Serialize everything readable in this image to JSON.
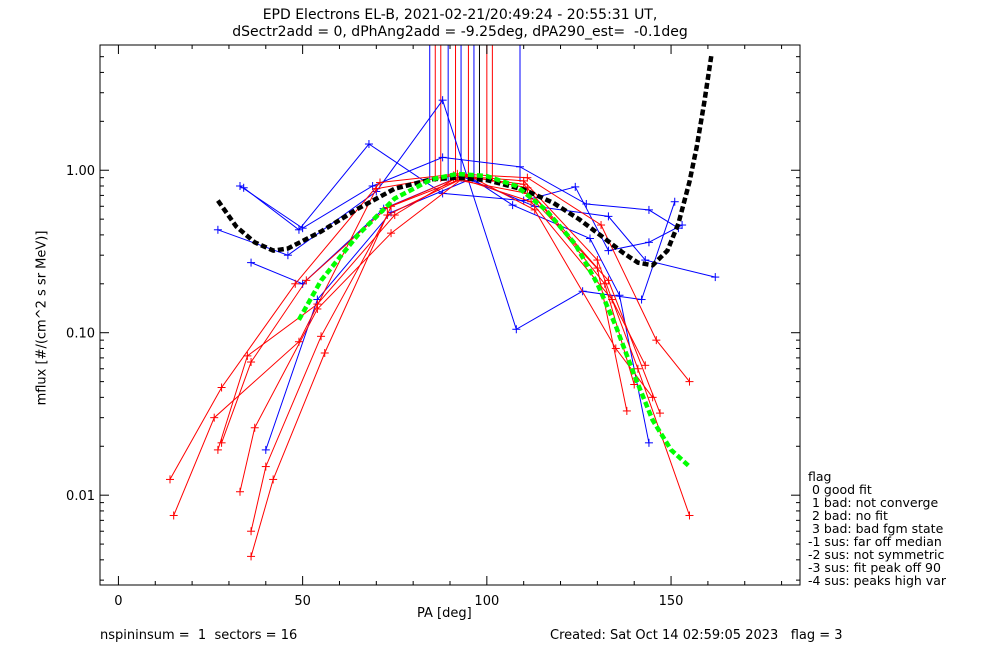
{
  "header": {
    "title_line1": "EPD Electrons EL-B, 2021-02-21/20:49:24 - 20:55:31 UT,",
    "title_line2": "dSectr2add = 0, dPhAng2add = -9.25deg, dPA290_est=  -0.1deg"
  },
  "footer": {
    "left": "nspininsum =  1  sectors = 16",
    "right": "Created: Sat Oct 14 02:59:05 2023   flag = 3"
  },
  "legend": {
    "heading": "flag",
    "items": [
      " 0 good fit",
      " 1 bad: not converge",
      " 2 bad: no fit",
      " 3 bad: bad fgm state",
      "-1 sus: far off median",
      "-2 sus: not symmetric",
      "-3 sus: fit peak off 90",
      "-4 sus: peaks high var"
    ]
  },
  "colors": {
    "blue": "#0000ff",
    "red": "#ff0000",
    "black": "#000000",
    "green": "#00ff00"
  },
  "chart_data": {
    "type": "line",
    "xlabel": "PA [deg]",
    "ylabel": "mflux [#/(cm^2 s sr MeV)]",
    "xlim": [
      -5,
      185
    ],
    "ylim": [
      0.0028,
      5.9
    ],
    "yscale": "log",
    "xticks": [
      0,
      50,
      100,
      150
    ],
    "yticks": [
      {
        "v": 0.01,
        "label": "0.01"
      },
      {
        "v": 0.1,
        "label": "0.10"
      },
      {
        "v": 1,
        "label": "1.00"
      }
    ],
    "vlines": [
      {
        "x": 84.5,
        "color": "blue"
      },
      {
        "x": 86,
        "color": "red"
      },
      {
        "x": 87.5,
        "color": "red"
      },
      {
        "x": 89.5,
        "color": "blue"
      },
      {
        "x": 91.5,
        "color": "red"
      },
      {
        "x": 93,
        "color": "blue"
      },
      {
        "x": 95,
        "color": "red"
      },
      {
        "x": 96.5,
        "color": "blue"
      },
      {
        "x": 98,
        "color": "black"
      },
      {
        "x": 100,
        "color": "red"
      },
      {
        "x": 101.5,
        "color": "red"
      },
      {
        "x": 109,
        "color": "blue"
      }
    ],
    "series": [
      {
        "color": "blue",
        "points": [
          [
            33,
            0.8
          ],
          [
            50,
            0.44
          ],
          [
            69,
            0.8
          ],
          [
            88,
            1.2
          ],
          [
            109,
            1.05
          ],
          [
            127,
            0.62
          ],
          [
            144,
            0.57
          ],
          [
            152,
            0.44
          ]
        ]
      },
      {
        "color": "blue",
        "points": [
          [
            34,
            0.78
          ],
          [
            49,
            0.43
          ],
          [
            68,
            1.45
          ],
          [
            88,
            0.72
          ],
          [
            110,
            0.65
          ],
          [
            124,
            0.79
          ],
          [
            133,
            0.32
          ],
          [
            144,
            0.36
          ],
          [
            153,
            0.46
          ]
        ]
      },
      {
        "color": "blue",
        "points": [
          [
            27,
            0.43
          ],
          [
            46,
            0.3
          ],
          [
            70,
            0.74
          ],
          [
            88,
            2.7
          ],
          [
            108,
            0.105
          ],
          [
            126,
            0.18
          ],
          [
            142,
            0.16
          ],
          [
            151,
            0.64
          ]
        ]
      },
      {
        "color": "blue",
        "points": [
          [
            36,
            0.27
          ],
          [
            50,
            0.2
          ],
          [
            72,
            0.58
          ],
          [
            93,
            0.92
          ],
          [
            113,
            0.6
          ],
          [
            133,
            0.52
          ],
          [
            143,
            0.28
          ],
          [
            162,
            0.22
          ]
        ]
      },
      {
        "color": "blue",
        "points": [
          [
            40,
            0.019
          ],
          [
            54,
            0.16
          ],
          [
            74,
            0.55
          ],
          [
            96,
            0.89
          ],
          [
            107,
            0.61
          ],
          [
            128,
            0.38
          ],
          [
            136,
            0.17
          ],
          [
            144,
            0.021
          ]
        ]
      },
      {
        "color": "red",
        "points": [
          [
            14,
            0.0125
          ],
          [
            28,
            0.046
          ],
          [
            48,
            0.2
          ],
          [
            71,
            0.84
          ],
          [
            92,
            0.95
          ],
          [
            111,
            0.9
          ],
          [
            131,
            0.46
          ],
          [
            146,
            0.09
          ],
          [
            155,
            0.05
          ]
        ]
      },
      {
        "color": "red",
        "points": [
          [
            15,
            0.0075
          ],
          [
            26,
            0.03
          ],
          [
            49,
            0.088
          ],
          [
            70,
            0.77
          ],
          [
            91,
            0.93
          ],
          [
            110,
            0.86
          ],
          [
            130,
            0.28
          ],
          [
            141,
            0.06
          ],
          [
            155,
            0.0075
          ]
        ]
      },
      {
        "color": "red",
        "points": [
          [
            27,
            0.019
          ],
          [
            35,
            0.072
          ],
          [
            54,
            0.15
          ],
          [
            75,
            0.53
          ],
          [
            91,
            0.88
          ],
          [
            111,
            0.72
          ],
          [
            133,
            0.21
          ],
          [
            147,
            0.032
          ]
        ]
      },
      {
        "color": "red",
        "points": [
          [
            28,
            0.021
          ],
          [
            36,
            0.066
          ],
          [
            51,
            0.21
          ],
          [
            73,
            0.59
          ],
          [
            92,
            0.9
          ],
          [
            112,
            0.64
          ],
          [
            134,
            0.16
          ],
          [
            143,
            0.063
          ]
        ]
      },
      {
        "color": "red",
        "points": [
          [
            33,
            0.0105
          ],
          [
            37,
            0.026
          ],
          [
            54,
            0.14
          ],
          [
            74,
            0.41
          ],
          [
            94,
            0.91
          ],
          [
            110,
            0.82
          ],
          [
            130,
            0.25
          ],
          [
            138,
            0.033
          ]
        ]
      },
      {
        "color": "red",
        "points": [
          [
            36,
            0.006
          ],
          [
            40,
            0.015
          ],
          [
            55,
            0.095
          ],
          [
            73,
            0.53
          ],
          [
            95,
            0.93
          ],
          [
            113,
            0.57
          ],
          [
            135,
            0.08
          ],
          [
            145,
            0.04
          ]
        ]
      },
      {
        "color": "red",
        "points": [
          [
            36,
            0.0042
          ],
          [
            42,
            0.0125
          ],
          [
            56,
            0.075
          ],
          [
            74,
            0.6
          ],
          [
            95,
            0.92
          ],
          [
            111,
            0.78
          ],
          [
            132,
            0.2
          ],
          [
            140,
            0.048
          ]
        ]
      }
    ],
    "fits": [
      {
        "color": "black",
        "points": [
          [
            27,
            0.65
          ],
          [
            32,
            0.45
          ],
          [
            37,
            0.36
          ],
          [
            42,
            0.32
          ],
          [
            46,
            0.33
          ],
          [
            55,
            0.42
          ],
          [
            65,
            0.58
          ],
          [
            75,
            0.77
          ],
          [
            85,
            0.88
          ],
          [
            92,
            0.9
          ],
          [
            100,
            0.87
          ],
          [
            110,
            0.76
          ],
          [
            118,
            0.63
          ],
          [
            125,
            0.5
          ],
          [
            132,
            0.38
          ],
          [
            137,
            0.31
          ],
          [
            141,
            0.27
          ],
          [
            145,
            0.26
          ],
          [
            149,
            0.32
          ],
          [
            152,
            0.47
          ],
          [
            155,
            0.85
          ],
          [
            157,
            1.4
          ],
          [
            159,
            2.6
          ],
          [
            161,
            5.2
          ]
        ]
      },
      {
        "color": "green",
        "points": [
          [
            49,
            0.12
          ],
          [
            55,
            0.21
          ],
          [
            65,
            0.4
          ],
          [
            75,
            0.67
          ],
          [
            85,
            0.88
          ],
          [
            92,
            0.95
          ],
          [
            100,
            0.92
          ],
          [
            108,
            0.8
          ],
          [
            116,
            0.57
          ],
          [
            124,
            0.35
          ],
          [
            130,
            0.2
          ],
          [
            135,
            0.11
          ],
          [
            140,
            0.055
          ],
          [
            145,
            0.029
          ],
          [
            150,
            0.019
          ],
          [
            155,
            0.015
          ]
        ]
      }
    ]
  }
}
